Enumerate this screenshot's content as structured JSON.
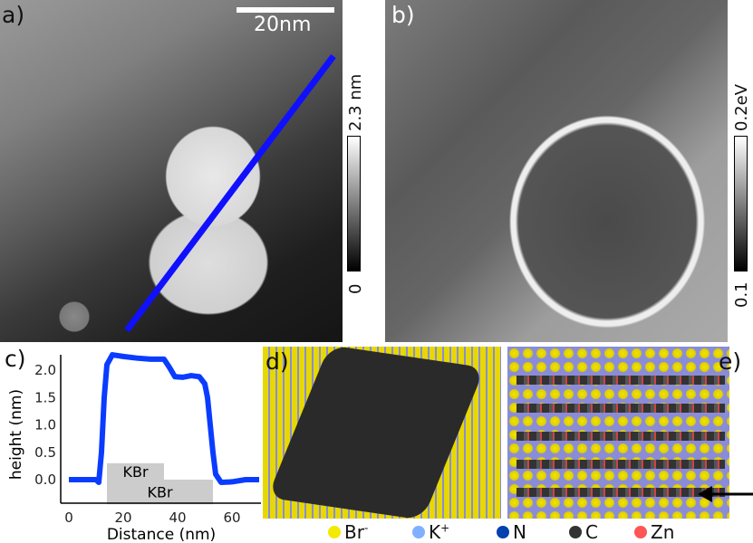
{
  "panels": {
    "a": "a)",
    "b": "b)",
    "c": "c)",
    "d": "d)",
    "e": "e)"
  },
  "scalebar": "20nm",
  "colorbar_a": {
    "max": "2.3 nm",
    "min": "0"
  },
  "colorbar_b": {
    "max": "0.2eV",
    "min": "0.1"
  },
  "legend": [
    {
      "label": "Br",
      "sup": "-",
      "color": "#f2ea00"
    },
    {
      "label": "K",
      "sup": "+",
      "color": "#80b0ff"
    },
    {
      "label": "N",
      "sup": "",
      "color": "#0040b0"
    },
    {
      "label": "C",
      "sup": "",
      "color": "#333333"
    },
    {
      "label": "Zn",
      "sup": "",
      "color": "#ff5555"
    }
  ],
  "chart_data": {
    "type": "line",
    "xlabel": "Distance (nm)",
    "ylabel": "height (nm)",
    "xlim": [
      -3,
      70
    ],
    "ylim": [
      -0.45,
      2.35
    ],
    "xticks": [
      0,
      20,
      40,
      60
    ],
    "yticks": [
      "0.0",
      "0.5",
      "1.0",
      "1.5",
      "2.0"
    ],
    "series": [
      {
        "color": "#0a3cff",
        "x": [
          0,
          10,
          11,
          12,
          13,
          14,
          16,
          20,
          25,
          30,
          35,
          37,
          39,
          42,
          45,
          48,
          50,
          51,
          52,
          53,
          54,
          56,
          60,
          65,
          70
        ],
        "y": [
          0,
          0,
          -0.05,
          0.5,
          1.5,
          2.1,
          2.28,
          2.25,
          2.22,
          2.2,
          2.2,
          2.05,
          1.88,
          1.87,
          1.9,
          1.88,
          1.75,
          1.5,
          1.0,
          0.5,
          0.1,
          -0.05,
          -0.04,
          0,
          0
        ]
      }
    ],
    "annotations": [
      {
        "text": "KBr",
        "x0": 14,
        "x1": 35,
        "y0": 0,
        "y1": 0.3
      },
      {
        "text": "KBr",
        "x0": 14,
        "x1": 53,
        "y0": -0.45,
        "y1": 0
      }
    ]
  }
}
